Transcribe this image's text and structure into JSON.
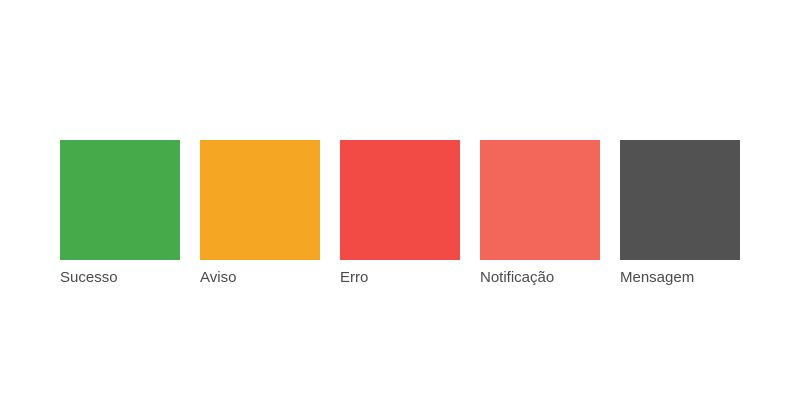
{
  "swatches": [
    {
      "label": "Sucesso",
      "color": "#46aa4b"
    },
    {
      "label": "Aviso",
      "color": "#f5a623"
    },
    {
      "label": "Erro",
      "color": "#f24a45"
    },
    {
      "label": "Notificação",
      "color": "#f3665a"
    },
    {
      "label": "Mensagem",
      "color": "#525253"
    }
  ]
}
